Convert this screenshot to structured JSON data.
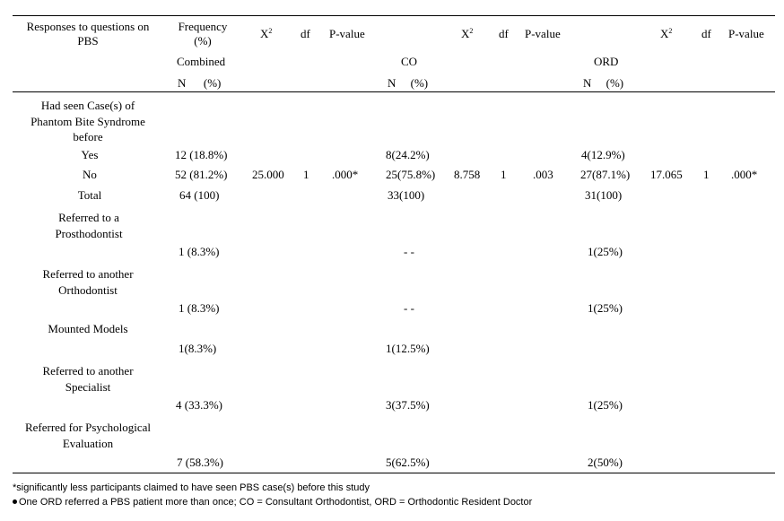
{
  "header": {
    "col_responses": "Responses to questions on PBS",
    "col_frequency": "Frequency (%)",
    "chi_symbol": "X",
    "chi_exp": "2",
    "df": "df",
    "pvalue": "P-value",
    "group_combined": "Combined",
    "group_co": "CO",
    "group_ord": "ORD",
    "n_label": "N",
    "pct_label": "(%)"
  },
  "rows": {
    "q1": "Had seen Case(s) of Phantom Bite Syndrome before",
    "yes": {
      "label": "Yes",
      "combined": "12 (18.8%)",
      "co": "8(24.2%)",
      "ord": "4(12.9%)"
    },
    "no": {
      "label": "No",
      "combined": "52 (81.2%)",
      "co": "25(75.8%)",
      "ord": "27(87.1%)",
      "chi_combined": "25.000",
      "df_combined": "1",
      "p_combined": ".000*",
      "chi_co": "8.758",
      "df_co": "1",
      "p_co": ".003",
      "chi_ord": "17.065",
      "df_ord": "1",
      "p_ord": ".000*"
    },
    "total": {
      "label": "Total",
      "combined": "64 (100)",
      "co": "33(100)",
      "ord": "31(100)"
    },
    "q2": {
      "label": "Referred to a Prosthodontist",
      "combined": "1 (8.3%)",
      "co": "- -",
      "ord": "1(25%)"
    },
    "q3": {
      "label": "Referred to another Orthodontist",
      "combined": "1 (8.3%)",
      "co": "- -",
      "ord": "1(25%)"
    },
    "q4": {
      "label": "Mounted Models",
      "combined": "1(8.3%)",
      "co": "1(12.5%)"
    },
    "q5": {
      "label": "Referred to another Specialist",
      "combined": "4 (33.3%)",
      "co": "3(37.5%)",
      "ord": "1(25%)"
    },
    "q6": {
      "label": "Referred for Psychological Evaluation",
      "combined": "7 (58.3%)",
      "co": "5(62.5%)",
      "ord": "2(50%)"
    }
  },
  "footnotes": {
    "note1": "*significantly less participants claimed to have seen PBS case(s) before this study",
    "note2": "One ORD referred a PBS patient more than once; CO = Consultant Orthodontist, ORD = Orthodontic Resident Doctor"
  }
}
